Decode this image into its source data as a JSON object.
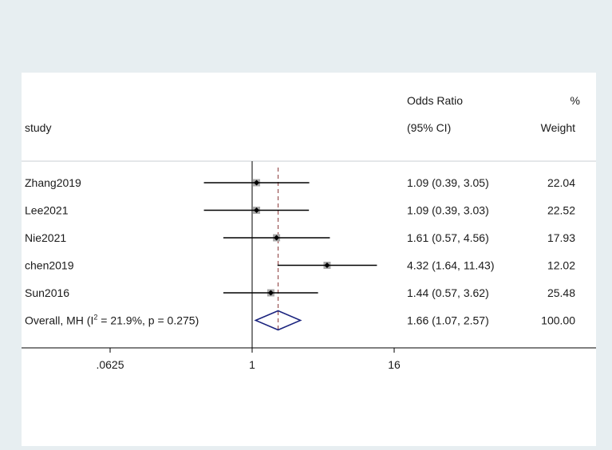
{
  "chart_data": {
    "type": "forest",
    "header": {
      "study_label": "study",
      "effect_label_line1": "Odds Ratio",
      "effect_label_line2": "(95% CI)",
      "weight_label_line1": "%",
      "weight_label_line2": "Weight"
    },
    "scale": "log",
    "x_ticks": [
      ".0625",
      "1",
      "16"
    ],
    "x_tick_values": [
      0.0625,
      1,
      16
    ],
    "null_line": 1,
    "studies": [
      {
        "name": "Zhang2019",
        "or": 1.09,
        "lower": 0.39,
        "upper": 3.05,
        "ci_text": "1.09 (0.39, 3.05)",
        "weight": "22.04"
      },
      {
        "name": "Lee2021",
        "or": 1.09,
        "lower": 0.39,
        "upper": 3.03,
        "ci_text": "1.09 (0.39, 3.03)",
        "weight": "22.52"
      },
      {
        "name": "Nie2021",
        "or": 1.61,
        "lower": 0.57,
        "upper": 4.56,
        "ci_text": "1.61 (0.57, 4.56)",
        "weight": "17.93"
      },
      {
        "name": "chen2019",
        "or": 4.32,
        "lower": 1.64,
        "upper": 11.43,
        "ci_text": "4.32 (1.64, 11.43)",
        "weight": "12.02"
      },
      {
        "name": "Sun2016",
        "or": 1.44,
        "lower": 0.57,
        "upper": 3.62,
        "ci_text": "1.44 (0.57, 3.62)",
        "weight": "25.48"
      }
    ],
    "overall": {
      "label_prefix": "Overall, MH (I",
      "label_sup": "2",
      "label_suffix": " = 21.9%, p = 0.275)",
      "or": 1.66,
      "lower": 1.07,
      "upper": 2.57,
      "ci_text": "1.66 (1.07, 2.57)",
      "weight": "100.00"
    },
    "colors": {
      "background": "#e7eef1",
      "plot_bg": "#ffffff",
      "ci_line": "#000000",
      "weight_box": "#a9a9a9",
      "diamond": "#1a237e",
      "overall_line": "#8b3a3a"
    }
  }
}
